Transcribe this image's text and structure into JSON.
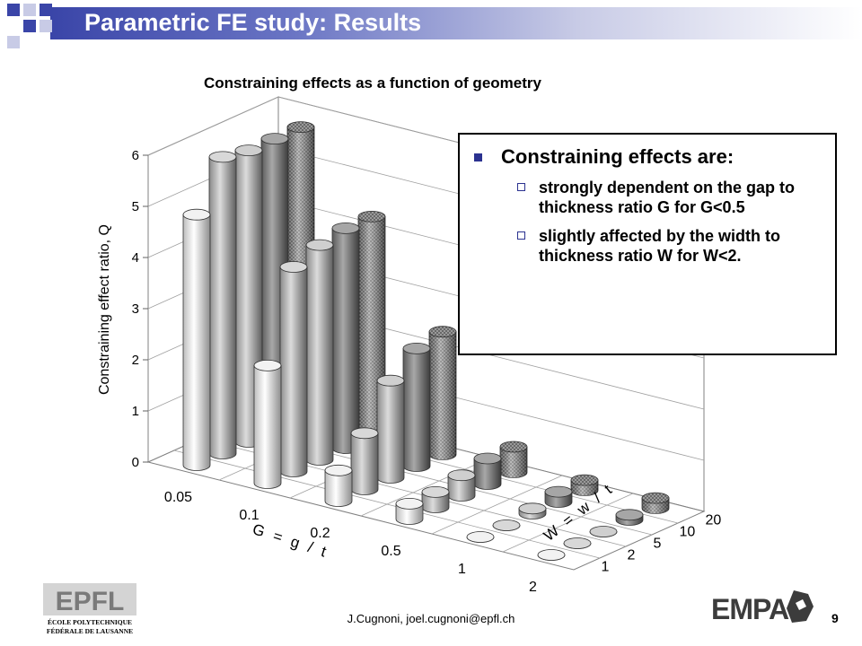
{
  "slide": {
    "title": "Parametric FE study: Results",
    "footer": "J.Cugnoni, joel.cugnoni@epfl.ch",
    "page_number": "9",
    "logo_left": "ÉCOLE POLYTECHNIQUE FÉDÉRALE DE LAUSANNE",
    "logo_right": "EMPA"
  },
  "callout": {
    "heading": "Constraining effects are:",
    "items": [
      "strongly dependent on the gap to thickness ratio G for G<0.5",
      "slightly affected by the width to thickness  ratio W for W<2."
    ]
  },
  "chart_data": {
    "type": "bar3d",
    "title": "Constraining effects as a function of geometry",
    "zlabel": "Constraining effect ratio, Q",
    "xlabel": "G = g / t",
    "ylabel": "W = w / t",
    "zlim": [
      0,
      6
    ],
    "z_ticks": [
      "0",
      "1",
      "2",
      "3",
      "4",
      "5",
      "6"
    ],
    "x_categories": [
      "0.05",
      "0.1",
      "0.2",
      "0.5",
      "1",
      "2"
    ],
    "y_categories": [
      "1",
      "2",
      "5",
      "10",
      "20"
    ],
    "values": [
      [
        4.9,
        2.3,
        0.6,
        0.3,
        0.0,
        0.0
      ],
      [
        5.8,
        4.0,
        1.1,
        0.3,
        0.0,
        0.0
      ],
      [
        5.7,
        4.2,
        1.9,
        0.4,
        0.1,
        0.0
      ],
      [
        5.7,
        4.3,
        2.3,
        0.5,
        0.2,
        0.1
      ],
      [
        5.7,
        4.3,
        2.4,
        0.5,
        0.2,
        0.2
      ]
    ]
  }
}
